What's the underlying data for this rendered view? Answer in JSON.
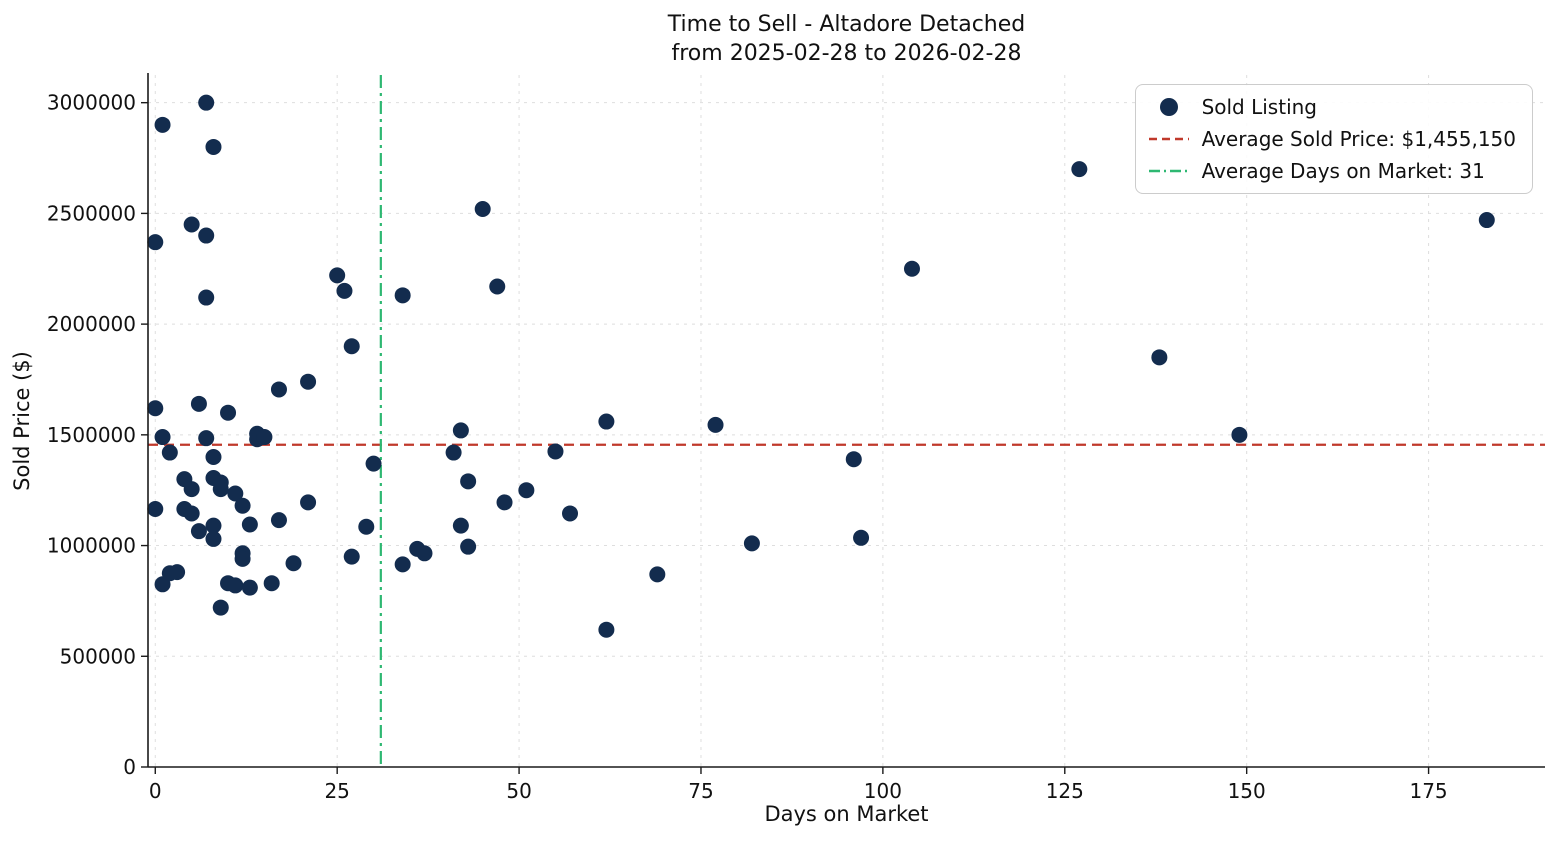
{
  "title": {
    "line1": "Time to Sell - Altadore Detached",
    "line2": "from 2025-02-28 to 2026-02-28"
  },
  "chart_data": {
    "type": "scatter",
    "title": "Time to Sell - Altadore Detached\nfrom 2025-02-28 to 2026-02-28",
    "xlabel": "Days on Market",
    "ylabel": "Sold Price ($)",
    "xlim": [
      -1,
      191
    ],
    "ylim": [
      0,
      3125000
    ],
    "x_ticks": [
      0,
      25,
      50,
      75,
      100,
      125,
      150,
      175
    ],
    "x_tick_labels": [
      "0",
      "25",
      "50",
      "75",
      "100",
      "125",
      "150",
      "175"
    ],
    "y_ticks": [
      0,
      500000,
      1000000,
      1500000,
      2000000,
      2500000,
      3000000
    ],
    "y_tick_labels": [
      "0",
      "500000",
      "1000000",
      "1500000",
      "2000000",
      "2500000",
      "3000000"
    ],
    "grid": true,
    "legend_position": "upper right",
    "series": [
      {
        "name": "Sold Listing",
        "color": "#132c4e",
        "marker": "circle",
        "points": [
          [
            0,
            2370000
          ],
          [
            1,
            2900000
          ],
          [
            7,
            3000000
          ],
          [
            8,
            2800000
          ],
          [
            5,
            2450000
          ],
          [
            7,
            2400000
          ],
          [
            7,
            2120000
          ],
          [
            0,
            1620000
          ],
          [
            1,
            1490000
          ],
          [
            2,
            1420000
          ],
          [
            0,
            1165000
          ],
          [
            1,
            825000
          ],
          [
            2,
            875000
          ],
          [
            3,
            880000
          ],
          [
            4,
            1300000
          ],
          [
            5,
            1255000
          ],
          [
            4,
            1165000
          ],
          [
            5,
            1145000
          ],
          [
            6,
            1065000
          ],
          [
            6,
            1640000
          ],
          [
            7,
            1485000
          ],
          [
            8,
            1400000
          ],
          [
            8,
            1305000
          ],
          [
            9,
            1255000
          ],
          [
            8,
            1090000
          ],
          [
            8,
            1030000
          ],
          [
            9,
            1285000
          ],
          [
            9,
            720000
          ],
          [
            10,
            1600000
          ],
          [
            10,
            830000
          ],
          [
            11,
            1235000
          ],
          [
            12,
            1180000
          ],
          [
            12,
            965000
          ],
          [
            12,
            940000
          ],
          [
            11,
            820000
          ],
          [
            13,
            810000
          ],
          [
            13,
            1095000
          ],
          [
            14,
            1480000
          ],
          [
            14,
            1505000
          ],
          [
            15,
            1490000
          ],
          [
            16,
            830000
          ],
          [
            17,
            1115000
          ],
          [
            17,
            1705000
          ],
          [
            19,
            920000
          ],
          [
            21,
            1740000
          ],
          [
            21,
            1195000
          ],
          [
            25,
            2220000
          ],
          [
            26,
            2150000
          ],
          [
            27,
            1900000
          ],
          [
            27,
            950000
          ],
          [
            29,
            1085000
          ],
          [
            30,
            1370000
          ],
          [
            34,
            2130000
          ],
          [
            34,
            915000
          ],
          [
            36,
            985000
          ],
          [
            37,
            965000
          ],
          [
            41,
            1420000
          ],
          [
            42,
            1520000
          ],
          [
            42,
            1090000
          ],
          [
            43,
            995000
          ],
          [
            43,
            1290000
          ],
          [
            45,
            2520000
          ],
          [
            47,
            2170000
          ],
          [
            48,
            1195000
          ],
          [
            51,
            1250000
          ],
          [
            55,
            1425000
          ],
          [
            57,
            1145000
          ],
          [
            62,
            1560000
          ],
          [
            62,
            620000
          ],
          [
            69,
            870000
          ],
          [
            77,
            1545000
          ],
          [
            82,
            1010000
          ],
          [
            96,
            1390000
          ],
          [
            97,
            1035000
          ],
          [
            104,
            2250000
          ],
          [
            127,
            2700000
          ],
          [
            138,
            1850000
          ],
          [
            149,
            1500000
          ],
          [
            183,
            2470000
          ]
        ]
      }
    ],
    "avg_price_line": {
      "value": 1455150,
      "label": "Average Sold Price: $1,455,150",
      "color": "#c0392b",
      "style": "dashed"
    },
    "avg_days_line": {
      "value": 31,
      "label": "Average Days on Market: 31",
      "color": "#2eb872",
      "style": "dashdot"
    },
    "legend": {
      "entries": [
        {
          "label": "Sold Listing",
          "marker": "dot"
        },
        {
          "label": "Average Sold Price: $1,455,150",
          "marker": "dashed-line"
        },
        {
          "label": "Average Days on Market: 31",
          "marker": "dashdot-line"
        }
      ]
    }
  }
}
